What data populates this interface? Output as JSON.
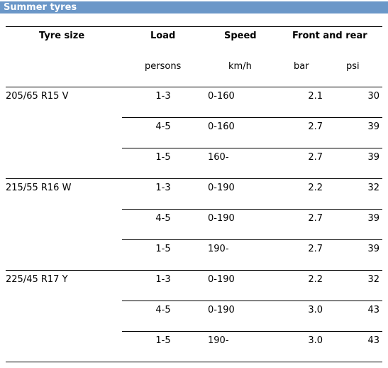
{
  "title": "Summer tyres",
  "headers": {
    "tyre_size": "Tyre size",
    "load": "Load",
    "speed": "Speed",
    "front_rear": "Front and rear"
  },
  "units": {
    "load": "persons",
    "speed": "km/h",
    "bar": "bar",
    "psi": "psi"
  },
  "groups": [
    {
      "size": "205/65 R15 V",
      "rows": [
        {
          "load": "1-3",
          "speed": "0-160",
          "bar": "2.1",
          "psi": "30"
        },
        {
          "load": "4-5",
          "speed": "0-160",
          "bar": "2.7",
          "psi": "39"
        },
        {
          "load": "1-5",
          "speed": "160-",
          "bar": "2.7",
          "psi": "39"
        }
      ]
    },
    {
      "size": "215/55 R16 W",
      "rows": [
        {
          "load": "1-3",
          "speed": "0-190",
          "bar": "2.2",
          "psi": "32"
        },
        {
          "load": "4-5",
          "speed": "0-190",
          "bar": "2.7",
          "psi": "39"
        },
        {
          "load": "1-5",
          "speed": "190-",
          "bar": "2.7",
          "psi": "39"
        }
      ]
    },
    {
      "size": "225/45 R17 Y",
      "rows": [
        {
          "load": "1-3",
          "speed": "0-190",
          "bar": "2.2",
          "psi": "32"
        },
        {
          "load": "4-5",
          "speed": "0-190",
          "bar": "3.0",
          "psi": "43"
        },
        {
          "load": "1-5",
          "speed": "190-",
          "bar": "3.0",
          "psi": "43"
        }
      ]
    }
  ]
}
